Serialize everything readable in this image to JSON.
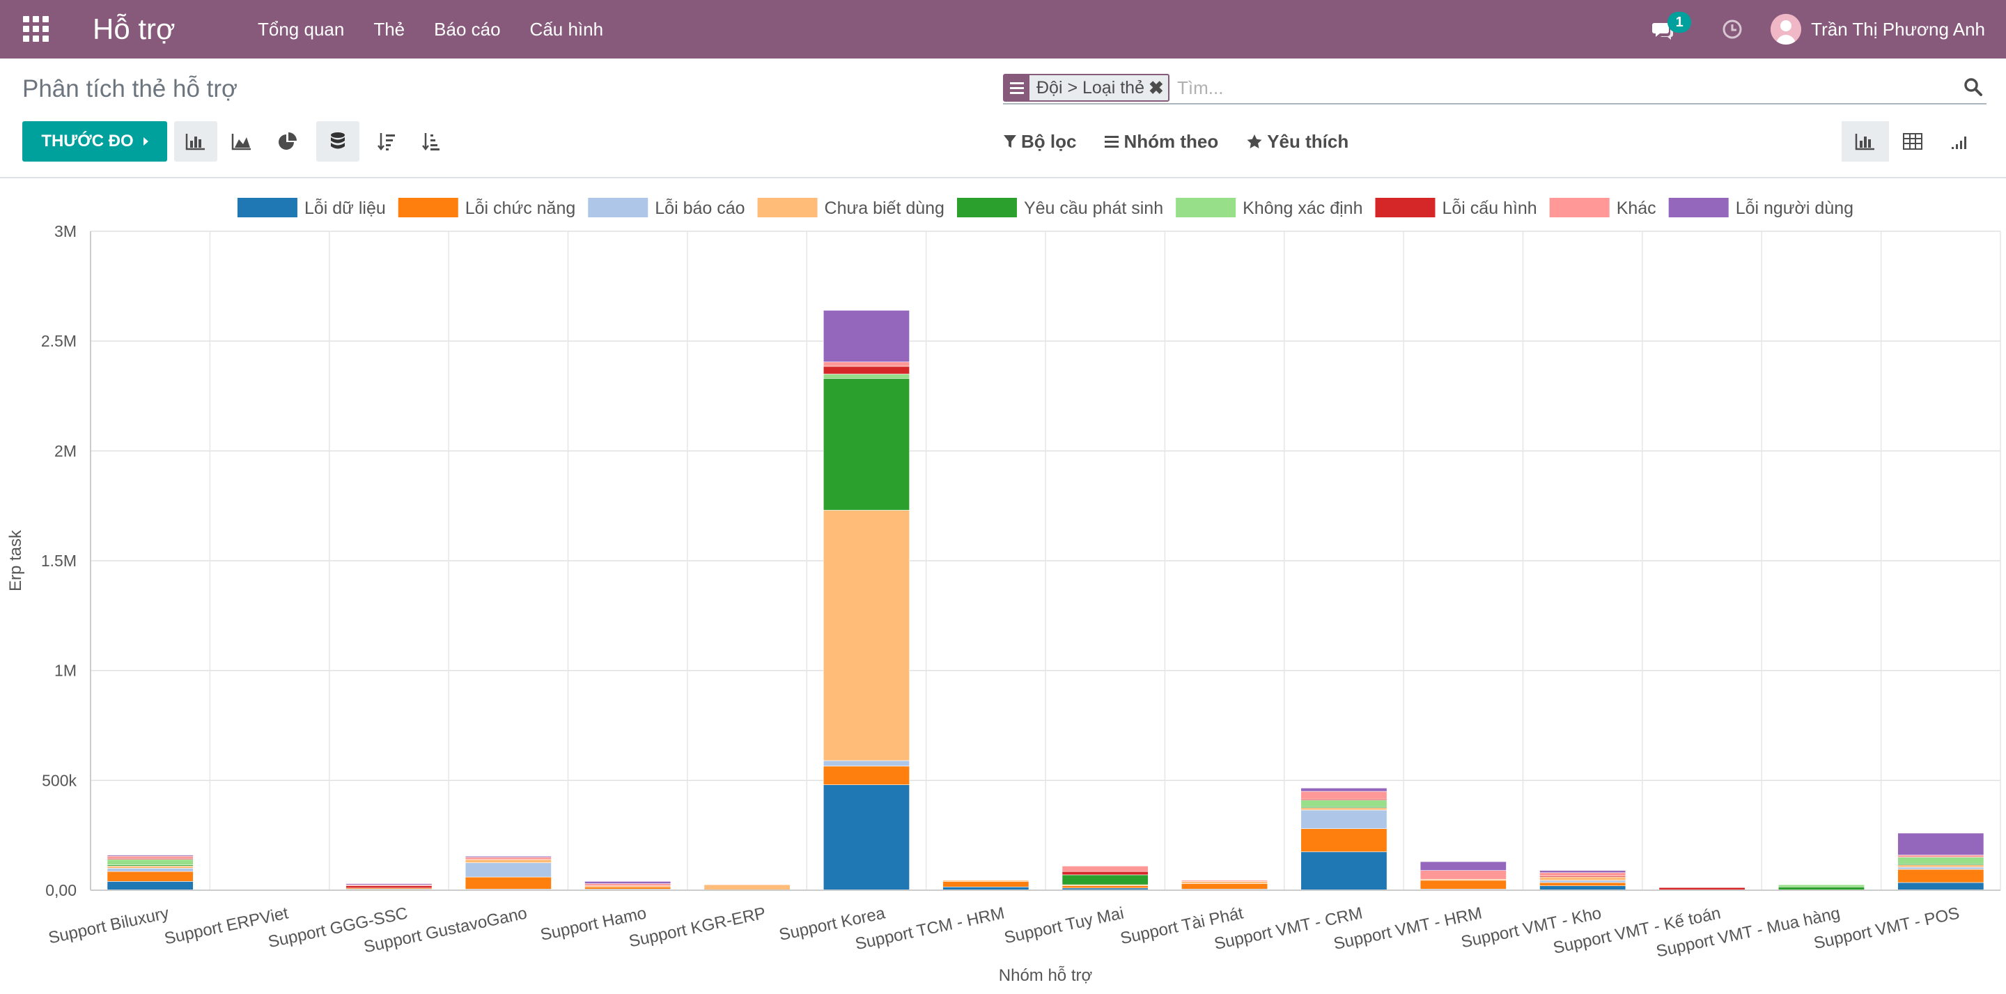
{
  "navbar": {
    "app_title": "Hỗ trợ",
    "menu": [
      "Tổng quan",
      "Thẻ",
      "Báo cáo",
      "Cấu hình"
    ],
    "chat_badge": "1",
    "user_name": "Trần Thị Phương Anh"
  },
  "control_panel": {
    "breadcrumb": "Phân tích thẻ hỗ trợ",
    "search": {
      "facet_label": "Đội > Loại thẻ",
      "placeholder": "Tìm..."
    },
    "measure_label": "THƯỚC ĐO",
    "filters": {
      "filter_label": "Bộ lọc",
      "groupby_label": "Nhóm theo",
      "favorites_label": "Yêu thích"
    }
  },
  "colors": {
    "navbar": "#875a7b",
    "accent": "#00a09d"
  },
  "chart_data": {
    "type": "bar",
    "stacked": true,
    "title": "",
    "xlabel": "Nhóm hỗ trợ",
    "ylabel": "Erp task",
    "ylim": [
      0,
      3000000
    ],
    "yticks": [
      0,
      500000,
      1000000,
      1500000,
      2000000,
      2500000,
      3000000
    ],
    "ytick_labels": [
      "0,00",
      "500k",
      "1M",
      "1.5M",
      "2M",
      "2.5M",
      "3M"
    ],
    "grid": true,
    "legend_position": "top",
    "categories": [
      "Support Biluxury",
      "Support ERPViet",
      "Support GGG-SSC",
      "Support GustavoGano",
      "Support Hamo",
      "Support KGR-ERP",
      "Support Korea",
      "Support TCM - HRM",
      "Support Tuy Mai",
      "Support Tài Phát",
      "Support VMT - CRM",
      "Support VMT - HRM",
      "Support VMT - Kho",
      "Support VMT - Kế toán",
      "Support VMT - Mua hàng",
      "Support VMT - POS"
    ],
    "series": [
      {
        "name": "Lỗi dữ liệu",
        "color": "#1f77b4",
        "values": [
          40000,
          0,
          5000,
          5000,
          5000,
          0,
          480000,
          15000,
          10000,
          5000,
          175000,
          5000,
          20000,
          0,
          0,
          35000
        ]
      },
      {
        "name": "Lỗi chức năng",
        "color": "#ff7f0e",
        "values": [
          45000,
          0,
          5000,
          55000,
          10000,
          0,
          85000,
          25000,
          10000,
          25000,
          105000,
          40000,
          15000,
          0,
          0,
          60000
        ]
      },
      {
        "name": "Lỗi báo cáo",
        "color": "#aec7e8",
        "values": [
          15000,
          0,
          0,
          65000,
          0,
          0,
          25000,
          0,
          0,
          0,
          85000,
          0,
          10000,
          0,
          0,
          10000
        ]
      },
      {
        "name": "Chưa biết dùng",
        "color": "#ffbb78",
        "values": [
          10000,
          0,
          0,
          15000,
          5000,
          25000,
          1140000,
          5000,
          5000,
          10000,
          10000,
          5000,
          15000,
          0,
          0,
          10000
        ]
      },
      {
        "name": "Yêu cầu phát sinh",
        "color": "#2ca02c",
        "values": [
          5000,
          0,
          0,
          0,
          0,
          0,
          600000,
          0,
          45000,
          0,
          5000,
          0,
          0,
          0,
          15000,
          5000
        ]
      },
      {
        "name": "Không xác định",
        "color": "#98df8a",
        "values": [
          25000,
          0,
          0,
          0,
          0,
          0,
          20000,
          0,
          0,
          0,
          30000,
          0,
          0,
          0,
          10000,
          30000
        ]
      },
      {
        "name": "Lỗi cấu hình",
        "color": "#d62728",
        "values": [
          5000,
          0,
          10000,
          0,
          0,
          0,
          35000,
          0,
          15000,
          0,
          5000,
          0,
          5000,
          12000,
          0,
          0
        ]
      },
      {
        "name": "Khác",
        "color": "#ff9896",
        "values": [
          10000,
          0,
          5000,
          10000,
          10000,
          0,
          20000,
          0,
          25000,
          5000,
          35000,
          40000,
          15000,
          0,
          0,
          10000
        ]
      },
      {
        "name": "Lỗi người dùng",
        "color": "#9467bd",
        "values": [
          5000,
          0,
          5000,
          5000,
          10000,
          0,
          235000,
          0,
          0,
          0,
          15000,
          40000,
          10000,
          0,
          0,
          100000
        ]
      }
    ]
  }
}
